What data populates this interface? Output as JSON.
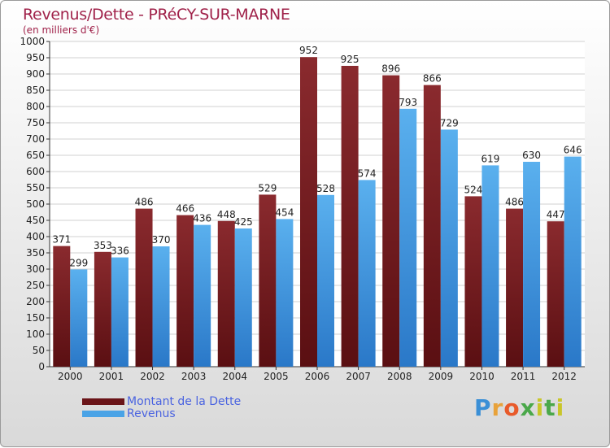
{
  "title": "Revenus/Dette - PRéCY-SUR-MARNE",
  "subtitle": "(en milliers d'€)",
  "logo": "Proxiti",
  "colors": {
    "dette": "#7a1e22",
    "revenus": "#4aa3e6",
    "title": "#a0224a",
    "legend_text": "#4a63e0"
  },
  "legend": {
    "dette_label": "Montant de la Dette",
    "revenus_label": "Revenus"
  },
  "chart_data": {
    "type": "bar",
    "title": "Revenus/Dette - PRéCY-SUR-MARNE",
    "ylabel": "(en milliers d'€)",
    "xlabel": "",
    "ylim": [
      0,
      1000
    ],
    "ytick_step": 50,
    "grid": true,
    "legend_position": "bottom-left",
    "categories": [
      "2000",
      "2001",
      "2002",
      "2003",
      "2004",
      "2005",
      "2006",
      "2007",
      "2008",
      "2009",
      "2010",
      "2011",
      "2012"
    ],
    "series": [
      {
        "name": "Montant de la Dette",
        "values": [
          371,
          353,
          486,
          466,
          448,
          529,
          952,
          925,
          896,
          866,
          524,
          486,
          447
        ]
      },
      {
        "name": "Revenus",
        "values": [
          299,
          336,
          370,
          436,
          425,
          454,
          528,
          574,
          793,
          729,
          619,
          630,
          646
        ]
      }
    ]
  }
}
